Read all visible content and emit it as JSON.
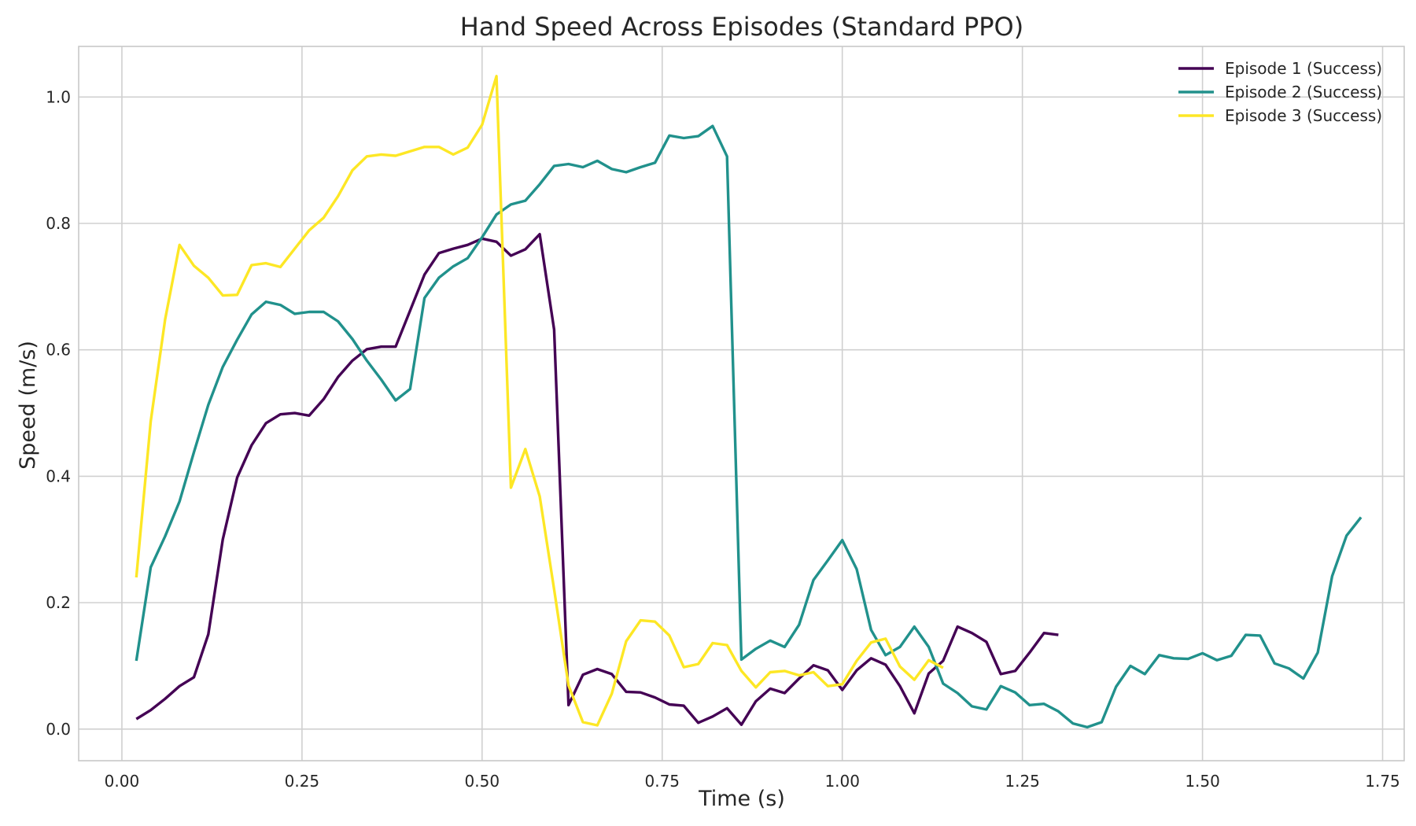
{
  "chart_data": {
    "type": "line",
    "title": "Hand Speed Across Episodes (Standard PPO)",
    "xlabel": "Time (s)",
    "ylabel": "Speed (m/s)",
    "xlim": [
      -0.06,
      1.78
    ],
    "ylim": [
      -0.05,
      1.08
    ],
    "xticks": [
      0.0,
      0.25,
      0.5,
      0.75,
      1.0,
      1.25,
      1.5,
      1.75
    ],
    "xtick_labels": [
      "0.00",
      "0.25",
      "0.50",
      "0.75",
      "1.00",
      "1.25",
      "1.50",
      "1.75"
    ],
    "yticks": [
      0.0,
      0.2,
      0.4,
      0.6,
      0.8,
      1.0
    ],
    "ytick_labels": [
      "0.0",
      "0.2",
      "0.4",
      "0.6",
      "0.8",
      "1.0"
    ],
    "grid": true,
    "legend_position": "top-right",
    "series": [
      {
        "name": "Episode 1 (Success)",
        "color": "#440154",
        "x": [
          0.02,
          0.04,
          0.06,
          0.08,
          0.1,
          0.12,
          0.14,
          0.16,
          0.18,
          0.2,
          0.22,
          0.24,
          0.26,
          0.28,
          0.3,
          0.32,
          0.34,
          0.36,
          0.38,
          0.4,
          0.42,
          0.44,
          0.46,
          0.48,
          0.5,
          0.52,
          0.54,
          0.56,
          0.58,
          0.6,
          0.62,
          0.64,
          0.66,
          0.68,
          0.7,
          0.72,
          0.74,
          0.76,
          0.78,
          0.8,
          0.82,
          0.84,
          0.86,
          0.88,
          0.9,
          0.92,
          0.94,
          0.96,
          0.98,
          1.0,
          1.02,
          1.04,
          1.06,
          1.08,
          1.1,
          1.12,
          1.14,
          1.16,
          1.18,
          1.2,
          1.22,
          1.24,
          1.26,
          1.28,
          1.3
        ],
        "y": [
          0.016,
          0.03,
          0.048,
          0.068,
          0.082,
          0.15,
          0.3,
          0.398,
          0.449,
          0.484,
          0.498,
          0.5,
          0.496,
          0.522,
          0.557,
          0.583,
          0.601,
          0.605,
          0.605,
          0.662,
          0.719,
          0.753,
          0.76,
          0.766,
          0.776,
          0.771,
          0.749,
          0.759,
          0.783,
          0.632,
          0.038,
          0.086,
          0.095,
          0.087,
          0.059,
          0.058,
          0.05,
          0.039,
          0.037,
          0.01,
          0.02,
          0.033,
          0.007,
          0.044,
          0.064,
          0.057,
          0.08,
          0.101,
          0.093,
          0.062,
          0.093,
          0.112,
          0.102,
          0.068,
          0.025,
          0.088,
          0.108,
          0.162,
          0.152,
          0.138,
          0.087,
          0.092,
          0.121,
          0.152,
          0.149
        ]
      },
      {
        "name": "Episode 2 (Success)",
        "color": "#21918c",
        "x": [
          0.02,
          0.04,
          0.06,
          0.08,
          0.1,
          0.12,
          0.14,
          0.16,
          0.18,
          0.2,
          0.22,
          0.24,
          0.26,
          0.28,
          0.3,
          0.32,
          0.34,
          0.36,
          0.38,
          0.4,
          0.42,
          0.44,
          0.46,
          0.48,
          0.5,
          0.52,
          0.54,
          0.56,
          0.58,
          0.6,
          0.62,
          0.64,
          0.66,
          0.68,
          0.7,
          0.72,
          0.74,
          0.76,
          0.78,
          0.8,
          0.82,
          0.84,
          0.86,
          0.88,
          0.9,
          0.92,
          0.94,
          0.96,
          0.98,
          1.0,
          1.02,
          1.04,
          1.06,
          1.08,
          1.1,
          1.12,
          1.14,
          1.16,
          1.18,
          1.2,
          1.22,
          1.24,
          1.26,
          1.28,
          1.3,
          1.32,
          1.34,
          1.36,
          1.38,
          1.4,
          1.42,
          1.44,
          1.46,
          1.48,
          1.5,
          1.52,
          1.54,
          1.56,
          1.58,
          1.6,
          1.62,
          1.64,
          1.66,
          1.68,
          1.7,
          1.72
        ],
        "y": [
          0.108,
          0.256,
          0.305,
          0.36,
          0.438,
          0.513,
          0.573,
          0.616,
          0.656,
          0.676,
          0.671,
          0.657,
          0.66,
          0.66,
          0.645,
          0.617,
          0.583,
          0.553,
          0.52,
          0.538,
          0.682,
          0.714,
          0.732,
          0.745,
          0.778,
          0.814,
          0.83,
          0.836,
          0.862,
          0.891,
          0.894,
          0.889,
          0.899,
          0.886,
          0.881,
          0.889,
          0.896,
          0.939,
          0.935,
          0.938,
          0.954,
          0.906,
          0.11,
          0.127,
          0.14,
          0.13,
          0.165,
          0.236,
          0.267,
          0.299,
          0.253,
          0.157,
          0.117,
          0.13,
          0.162,
          0.13,
          0.072,
          0.057,
          0.036,
          0.031,
          0.068,
          0.058,
          0.038,
          0.04,
          0.028,
          0.009,
          0.003,
          0.011,
          0.067,
          0.1,
          0.087,
          0.117,
          0.112,
          0.111,
          0.12,
          0.109,
          0.116,
          0.149,
          0.148,
          0.104,
          0.096,
          0.08,
          0.121,
          0.242,
          0.306,
          0.335
        ]
      },
      {
        "name": "Episode 3 (Success)",
        "color": "#fde725",
        "x": [
          0.02,
          0.04,
          0.06,
          0.08,
          0.1,
          0.12,
          0.14,
          0.16,
          0.18,
          0.2,
          0.22,
          0.24,
          0.26,
          0.28,
          0.3,
          0.32,
          0.34,
          0.36,
          0.38,
          0.4,
          0.42,
          0.44,
          0.46,
          0.48,
          0.5,
          0.52,
          0.54,
          0.56,
          0.58,
          0.6,
          0.62,
          0.64,
          0.66,
          0.68,
          0.7,
          0.72,
          0.74,
          0.76,
          0.78,
          0.8,
          0.82,
          0.84,
          0.86,
          0.88,
          0.9,
          0.92,
          0.94,
          0.96,
          0.98,
          1.0,
          1.02,
          1.04,
          1.06,
          1.08,
          1.1,
          1.12,
          1.14
        ],
        "y": [
          0.24,
          0.487,
          0.648,
          0.766,
          0.733,
          0.714,
          0.686,
          0.687,
          0.734,
          0.737,
          0.731,
          0.76,
          0.789,
          0.809,
          0.843,
          0.884,
          0.906,
          0.909,
          0.907,
          0.914,
          0.921,
          0.921,
          0.909,
          0.92,
          0.956,
          1.033,
          0.382,
          0.443,
          0.368,
          0.221,
          0.069,
          0.011,
          0.006,
          0.056,
          0.139,
          0.172,
          0.17,
          0.148,
          0.098,
          0.103,
          0.136,
          0.133,
          0.092,
          0.066,
          0.09,
          0.092,
          0.085,
          0.09,
          0.068,
          0.071,
          0.108,
          0.137,
          0.143,
          0.099,
          0.078,
          0.109,
          0.097
        ]
      }
    ]
  }
}
